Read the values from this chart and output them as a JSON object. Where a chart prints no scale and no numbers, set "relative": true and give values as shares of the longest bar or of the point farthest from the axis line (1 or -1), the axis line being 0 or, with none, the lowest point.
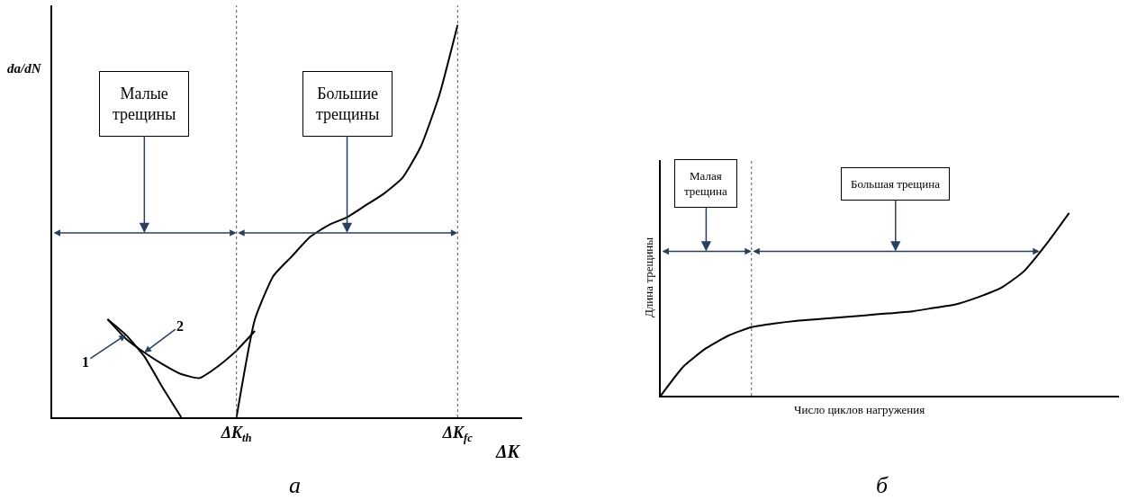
{
  "chart_data": [
    {
      "type": "line",
      "relative": true,
      "xlabel": "ΔK",
      "ylabel": "da/dN",
      "line_style": "solid",
      "categories": [
        null,
        null,
        null,
        null,
        null,
        null,
        null,
        null,
        null,
        null,
        "ΔK$_{th}$",
        null,
        null,
        null,
        null,
        null,
        null,
        null,
        null,
        null,
        null,
        null,
        "ΔK$_{fc}$",
        null,
        null
      ],
      "series": [
        {
          "name": "1",
          "color": "#000000",
          "values": [
            null,
            null,
            null,
            0.25,
            0.21,
            0.155,
            0.075,
            0,
            null,
            null,
            null,
            null,
            null,
            null,
            null,
            null,
            null,
            null,
            null,
            null,
            null,
            null,
            null,
            null,
            null
          ]
        },
        {
          "name": "2",
          "color": "#000000",
          "values": [
            null,
            null,
            null,
            0.25,
            0.2,
            0.165,
            0.135,
            0.11,
            0.1,
            0.13,
            0.17,
            0.22,
            null,
            null,
            null,
            null,
            null,
            null,
            null,
            null,
            null,
            null,
            null,
            null,
            null
          ]
        },
        {
          "color": "#000000",
          "values": [
            null,
            null,
            null,
            null,
            null,
            null,
            null,
            null,
            null,
            null,
            0,
            0.25,
            0.36,
            0.41,
            0.46,
            0.49,
            0.51,
            0.54,
            0.57,
            0.61,
            0.69,
            0.82,
            1.0,
            null,
            null
          ]
        }
      ],
      "ref_lines": [
        {
          "axis": "x",
          "value": "ΔK$_{th}$",
          "line_style": "dotted"
        },
        {
          "axis": "x",
          "value": "ΔK$_{fc}$",
          "line_style": "dotted"
        }
      ],
      "annotations": [
        "Малые трещины",
        "Большие трещины",
        "а"
      ]
    },
    {
      "type": "line",
      "relative": true,
      "xlabel": "Число циклов нагружения",
      "ylabel": "Длина трещины",
      "line_style": "solid",
      "categories": [
        null,
        null,
        null,
        null,
        null,
        null,
        null,
        null,
        null,
        null,
        null,
        null,
        null,
        null,
        null,
        null,
        null,
        null,
        null
      ],
      "series": [
        {
          "color": "#000000",
          "values": [
            0,
            0.16,
            0.26,
            0.33,
            0.375,
            0.395,
            0.41,
            0.42,
            0.43,
            0.44,
            0.45,
            0.46,
            0.48,
            0.5,
            0.54,
            0.59,
            0.68,
            0.83,
            1.0
          ]
        }
      ],
      "annotations": [
        "Малая трещина",
        "Большая трещина",
        "б"
      ]
    }
  ]
}
